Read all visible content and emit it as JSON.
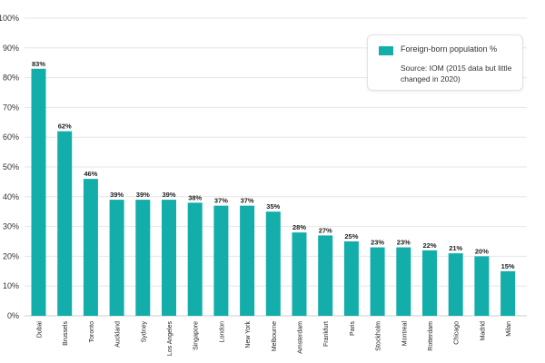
{
  "chart_data": {
    "type": "bar",
    "categories": [
      "Dubai",
      "Brussels",
      "Toronto",
      "Auckland",
      "Sydney",
      "Los Angeles",
      "Singapore",
      "London",
      "New York",
      "Melbourne",
      "Amsterdam",
      "Frankfurt",
      "Paris",
      "Stockholm",
      "Montreal",
      "Rotterdam",
      "Chicago",
      "Madrid",
      "Milan"
    ],
    "series": [
      {
        "name": "Foreign-born population %",
        "values": [
          83,
          62,
          46,
          39,
          39,
          39,
          38,
          37,
          37,
          35,
          28,
          27,
          25,
          23,
          23,
          22,
          21,
          20,
          15
        ],
        "labels": [
          "83%",
          "62%",
          "46%",
          "39%",
          "39%",
          "39%",
          "38%",
          "37%",
          "37%",
          "35%",
          "28%",
          "27%",
          "25%",
          "23%",
          "23%",
          "22%",
          "21%",
          "20%",
          "15%"
        ]
      }
    ],
    "yticks": [
      "0%",
      "10%",
      "20%",
      "30%",
      "40%",
      "50%",
      "60%",
      "70%",
      "80%",
      "90%",
      "100%"
    ],
    "ylim": [
      0,
      100
    ],
    "grid": true,
    "legend_position": "top-right",
    "legend_note": "Source: IOM (2015 data but little changed in 2020)",
    "colors": {
      "bar": "#14aeaa",
      "grid": "#e6e6e6",
      "axis": "#cccccc"
    }
  }
}
